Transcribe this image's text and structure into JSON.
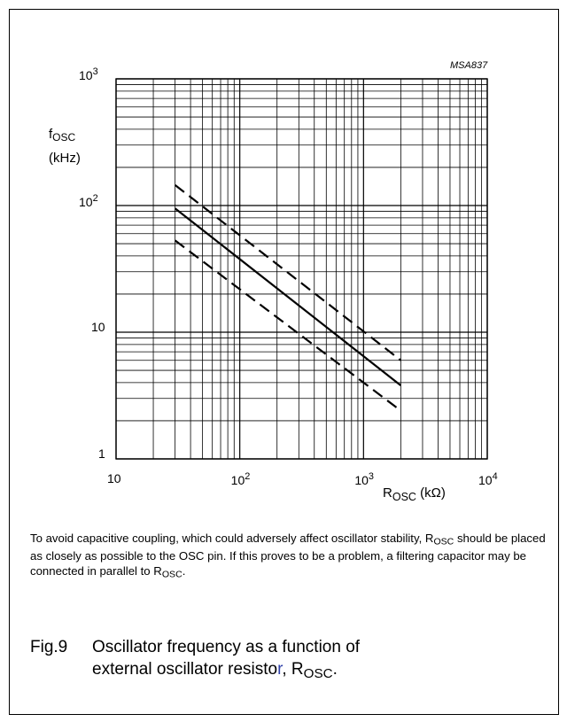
{
  "figure": {
    "ref_code": "MSA837",
    "ylabel": {
      "symbol": "f",
      "sub": "OSC",
      "unit": "(kHz)"
    },
    "xlabel": {
      "symbol": "R",
      "sub": "OSC",
      "unit": "(kΩ)"
    },
    "note": {
      "p1": "To avoid capacitive coupling, which could adversely affect oscillator stability, R",
      "sub1": "OSC",
      "p2": " should be placed as closely as possible to the OSC pin. If this proves to be a problem, a filtering capacitor may be connected in parallel to R",
      "sub2": "OSC",
      "p3": "."
    },
    "caption": {
      "number": "Fig.9",
      "line1": "Oscillator frequency as a function of",
      "line2a": "external oscillator resisto",
      "line2r": "r",
      "line2b": ", R",
      "sub": "OSC",
      "end": "."
    },
    "caption_r_color": "#3344aa"
  },
  "chart_data": {
    "type": "line",
    "title": "",
    "xlabel": "R OSC (kΩ)",
    "ylabel": "f OSC (kHz)",
    "xscale": "log",
    "yscale": "log",
    "xlim": [
      10,
      10000
    ],
    "ylim": [
      1,
      1000
    ],
    "grid": true,
    "x_tick_labels": [
      {
        "value": 10,
        "base": "10",
        "exp": ""
      },
      {
        "value": 100,
        "base": "10",
        "exp": "2"
      },
      {
        "value": 1000,
        "base": "10",
        "exp": "3"
      },
      {
        "value": 10000,
        "base": "10",
        "exp": "4"
      }
    ],
    "y_tick_labels": [
      {
        "value": 1,
        "base": "1",
        "exp": ""
      },
      {
        "value": 10,
        "base": "10",
        "exp": ""
      },
      {
        "value": 100,
        "base": "10",
        "exp": "2"
      },
      {
        "value": 1000,
        "base": "10",
        "exp": "3"
      }
    ],
    "series": [
      {
        "style": "dashed",
        "x": [
          30,
          2000
        ],
        "y": [
          145,
          6
        ]
      },
      {
        "style": "solid",
        "x": [
          30,
          2000
        ],
        "y": [
          95,
          3.8
        ]
      },
      {
        "style": "dashed",
        "x": [
          30,
          2000
        ],
        "y": [
          53,
          2.4
        ]
      }
    ]
  }
}
